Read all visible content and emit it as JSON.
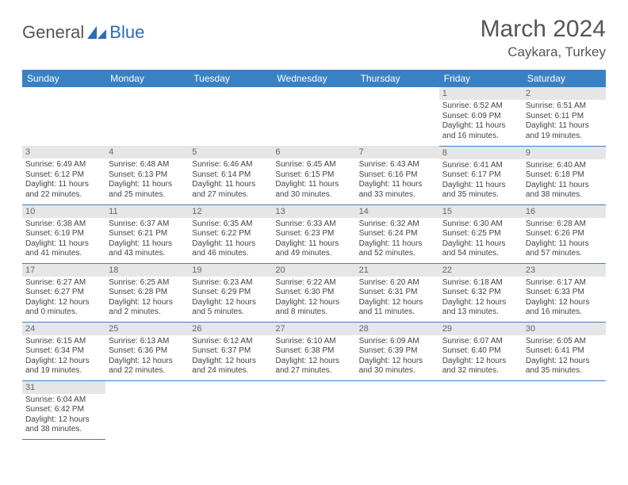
{
  "logo": {
    "general": "General",
    "blue": "Blue"
  },
  "title": "March 2024",
  "location": "Caykara, Turkey",
  "weekdays": [
    "Sunday",
    "Monday",
    "Tuesday",
    "Wednesday",
    "Thursday",
    "Friday",
    "Saturday"
  ],
  "colors": {
    "header_bg": "#3a81c4",
    "daynum_bg": "#e6e6e6",
    "border": "#3a81c4"
  },
  "weeks": [
    [
      {
        "empty": true
      },
      {
        "empty": true
      },
      {
        "empty": true
      },
      {
        "empty": true
      },
      {
        "empty": true
      },
      {
        "num": "1",
        "sr": "Sunrise: 6:52 AM",
        "ss": "Sunset: 6:09 PM",
        "dl": "Daylight: 11 hours and 16 minutes."
      },
      {
        "num": "2",
        "sr": "Sunrise: 6:51 AM",
        "ss": "Sunset: 6:11 PM",
        "dl": "Daylight: 11 hours and 19 minutes."
      }
    ],
    [
      {
        "num": "3",
        "sr": "Sunrise: 6:49 AM",
        "ss": "Sunset: 6:12 PM",
        "dl": "Daylight: 11 hours and 22 minutes."
      },
      {
        "num": "4",
        "sr": "Sunrise: 6:48 AM",
        "ss": "Sunset: 6:13 PM",
        "dl": "Daylight: 11 hours and 25 minutes."
      },
      {
        "num": "5",
        "sr": "Sunrise: 6:46 AM",
        "ss": "Sunset: 6:14 PM",
        "dl": "Daylight: 11 hours and 27 minutes."
      },
      {
        "num": "6",
        "sr": "Sunrise: 6:45 AM",
        "ss": "Sunset: 6:15 PM",
        "dl": "Daylight: 11 hours and 30 minutes."
      },
      {
        "num": "7",
        "sr": "Sunrise: 6:43 AM",
        "ss": "Sunset: 6:16 PM",
        "dl": "Daylight: 11 hours and 33 minutes."
      },
      {
        "num": "8",
        "sr": "Sunrise: 6:41 AM",
        "ss": "Sunset: 6:17 PM",
        "dl": "Daylight: 11 hours and 35 minutes."
      },
      {
        "num": "9",
        "sr": "Sunrise: 6:40 AM",
        "ss": "Sunset: 6:18 PM",
        "dl": "Daylight: 11 hours and 38 minutes."
      }
    ],
    [
      {
        "num": "10",
        "sr": "Sunrise: 6:38 AM",
        "ss": "Sunset: 6:19 PM",
        "dl": "Daylight: 11 hours and 41 minutes."
      },
      {
        "num": "11",
        "sr": "Sunrise: 6:37 AM",
        "ss": "Sunset: 6:21 PM",
        "dl": "Daylight: 11 hours and 43 minutes."
      },
      {
        "num": "12",
        "sr": "Sunrise: 6:35 AM",
        "ss": "Sunset: 6:22 PM",
        "dl": "Daylight: 11 hours and 46 minutes."
      },
      {
        "num": "13",
        "sr": "Sunrise: 6:33 AM",
        "ss": "Sunset: 6:23 PM",
        "dl": "Daylight: 11 hours and 49 minutes."
      },
      {
        "num": "14",
        "sr": "Sunrise: 6:32 AM",
        "ss": "Sunset: 6:24 PM",
        "dl": "Daylight: 11 hours and 52 minutes."
      },
      {
        "num": "15",
        "sr": "Sunrise: 6:30 AM",
        "ss": "Sunset: 6:25 PM",
        "dl": "Daylight: 11 hours and 54 minutes."
      },
      {
        "num": "16",
        "sr": "Sunrise: 6:28 AM",
        "ss": "Sunset: 6:26 PM",
        "dl": "Daylight: 11 hours and 57 minutes."
      }
    ],
    [
      {
        "num": "17",
        "sr": "Sunrise: 6:27 AM",
        "ss": "Sunset: 6:27 PM",
        "dl": "Daylight: 12 hours and 0 minutes."
      },
      {
        "num": "18",
        "sr": "Sunrise: 6:25 AM",
        "ss": "Sunset: 6:28 PM",
        "dl": "Daylight: 12 hours and 2 minutes."
      },
      {
        "num": "19",
        "sr": "Sunrise: 6:23 AM",
        "ss": "Sunset: 6:29 PM",
        "dl": "Daylight: 12 hours and 5 minutes."
      },
      {
        "num": "20",
        "sr": "Sunrise: 6:22 AM",
        "ss": "Sunset: 6:30 PM",
        "dl": "Daylight: 12 hours and 8 minutes."
      },
      {
        "num": "21",
        "sr": "Sunrise: 6:20 AM",
        "ss": "Sunset: 6:31 PM",
        "dl": "Daylight: 12 hours and 11 minutes."
      },
      {
        "num": "22",
        "sr": "Sunrise: 6:18 AM",
        "ss": "Sunset: 6:32 PM",
        "dl": "Daylight: 12 hours and 13 minutes."
      },
      {
        "num": "23",
        "sr": "Sunrise: 6:17 AM",
        "ss": "Sunset: 6:33 PM",
        "dl": "Daylight: 12 hours and 16 minutes."
      }
    ],
    [
      {
        "num": "24",
        "sr": "Sunrise: 6:15 AM",
        "ss": "Sunset: 6:34 PM",
        "dl": "Daylight: 12 hours and 19 minutes."
      },
      {
        "num": "25",
        "sr": "Sunrise: 6:13 AM",
        "ss": "Sunset: 6:36 PM",
        "dl": "Daylight: 12 hours and 22 minutes."
      },
      {
        "num": "26",
        "sr": "Sunrise: 6:12 AM",
        "ss": "Sunset: 6:37 PM",
        "dl": "Daylight: 12 hours and 24 minutes."
      },
      {
        "num": "27",
        "sr": "Sunrise: 6:10 AM",
        "ss": "Sunset: 6:38 PM",
        "dl": "Daylight: 12 hours and 27 minutes."
      },
      {
        "num": "28",
        "sr": "Sunrise: 6:09 AM",
        "ss": "Sunset: 6:39 PM",
        "dl": "Daylight: 12 hours and 30 minutes."
      },
      {
        "num": "29",
        "sr": "Sunrise: 6:07 AM",
        "ss": "Sunset: 6:40 PM",
        "dl": "Daylight: 12 hours and 32 minutes."
      },
      {
        "num": "30",
        "sr": "Sunrise: 6:05 AM",
        "ss": "Sunset: 6:41 PM",
        "dl": "Daylight: 12 hours and 35 minutes."
      }
    ],
    [
      {
        "num": "31",
        "sr": "Sunrise: 6:04 AM",
        "ss": "Sunset: 6:42 PM",
        "dl": "Daylight: 12 hours and 38 minutes."
      },
      {
        "empty": true
      },
      {
        "empty": true
      },
      {
        "empty": true
      },
      {
        "empty": true
      },
      {
        "empty": true
      },
      {
        "empty": true
      }
    ]
  ]
}
